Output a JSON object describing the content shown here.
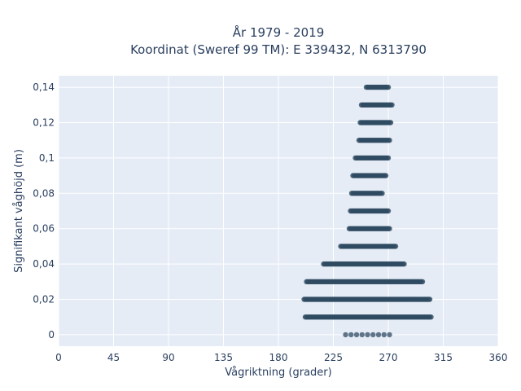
{
  "chart_data": {
    "type": "scatter",
    "title_line1": "År 1979 - 2019",
    "title_line2": "Koordinat (Sweref 99 TM): E 339432, N 6313790",
    "xlabel": "Vågriktning (grader)",
    "ylabel": "Signifikant våghöjd (m)",
    "xlim": [
      0,
      360
    ],
    "ylim": [
      -0.0065,
      0.1465
    ],
    "x_ticks": [
      0,
      45,
      90,
      135,
      180,
      225,
      270,
      315,
      360
    ],
    "x_tick_labels": [
      "0",
      "45",
      "90",
      "135",
      "180",
      "225",
      "270",
      "315",
      "360"
    ],
    "y_ticks": [
      0,
      0.02,
      0.04,
      0.06,
      0.08,
      0.1,
      0.12,
      0.14
    ],
    "y_tick_labels": [
      "0",
      "0,02",
      "0,04",
      "0,06",
      "0,08",
      "0,1",
      "0,12",
      "0,14"
    ],
    "grid": true,
    "background_color": "#e5ecf6",
    "marker_color": "#2f4b62",
    "series": [
      {
        "bands": [
          {
            "y": 0.0,
            "x_min": 235,
            "x_max": 275,
            "sparse": true
          },
          {
            "y": 0.01,
            "x_min": 202,
            "x_max": 305
          },
          {
            "y": 0.02,
            "x_min": 201,
            "x_max": 304
          },
          {
            "y": 0.03,
            "x_min": 203,
            "x_max": 298
          },
          {
            "y": 0.04,
            "x_min": 217,
            "x_max": 283
          },
          {
            "y": 0.05,
            "x_min": 231,
            "x_max": 276
          },
          {
            "y": 0.06,
            "x_min": 238,
            "x_max": 271
          },
          {
            "y": 0.07,
            "x_min": 239,
            "x_max": 270
          },
          {
            "y": 0.08,
            "x_min": 240,
            "x_max": 265
          },
          {
            "y": 0.09,
            "x_min": 241,
            "x_max": 268
          },
          {
            "y": 0.1,
            "x_min": 243,
            "x_max": 270
          },
          {
            "y": 0.11,
            "x_min": 246,
            "x_max": 271
          },
          {
            "y": 0.12,
            "x_min": 247,
            "x_max": 272
          },
          {
            "y": 0.13,
            "x_min": 248,
            "x_max": 273
          },
          {
            "y": 0.14,
            "x_min": 252,
            "x_max": 270
          }
        ]
      }
    ]
  }
}
